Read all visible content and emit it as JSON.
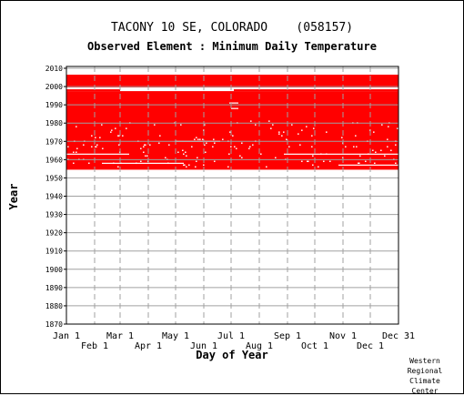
{
  "title": "TACONY 10 SE, COLORADO    (058157)",
  "subtitle": "Observed Element : Minimum Daily Temperature",
  "credit": [
    "Western",
    "Regional",
    "Climate",
    "Center"
  ],
  "colors": {
    "data": "#ff0000",
    "grid": "#a0a0a0",
    "axis": "#000000"
  },
  "chart_data": {
    "type": "scatter",
    "title": "TACONY 10 SE, COLORADO    (058157)",
    "subtitle": "Observed Element : Minimum Daily Temperature",
    "xlabel": "Day of Year",
    "ylabel": "Year",
    "xlim": [
      1,
      366
    ],
    "ylim": [
      1870,
      2011
    ],
    "x_ticks_top": [
      {
        "day": 1,
        "label": "Jan 1"
      },
      {
        "day": 60,
        "label": "Mar 1"
      },
      {
        "day": 121,
        "label": "May 1"
      },
      {
        "day": 182,
        "label": "Jul 1"
      },
      {
        "day": 244,
        "label": "Sep 1"
      },
      {
        "day": 305,
        "label": "Nov 1"
      },
      {
        "day": 366,
        "label": "Dec 31"
      }
    ],
    "x_ticks_bottom": [
      {
        "day": 32,
        "label": "Feb 1"
      },
      {
        "day": 91,
        "label": "Apr 1"
      },
      {
        "day": 152,
        "label": "Jun 1"
      },
      {
        "day": 213,
        "label": "Aug 1"
      },
      {
        "day": 274,
        "label": "Oct 1"
      },
      {
        "day": 335,
        "label": "Dec 1"
      }
    ],
    "y_ticks": [
      1870,
      1880,
      1890,
      1900,
      1910,
      1920,
      1930,
      1940,
      1950,
      1960,
      1970,
      1980,
      1990,
      2000,
      2010
    ],
    "grid": true,
    "series": [
      {
        "values": [
          {
            "start_year": 1955,
            "end_year": 1997,
            "start_day": 1,
            "end_day": 366,
            "coverage": "dense"
          },
          {
            "start_year": 2000,
            "end_year": 2006,
            "start_day": 1,
            "end_day": 366,
            "coverage": "dense"
          },
          {
            "start_year": 1998,
            "end_year": 1998,
            "start_day": 1,
            "end_day": 60,
            "coverage": "dense"
          },
          {
            "start_year": 1998,
            "end_year": 1998,
            "start_day": 185,
            "end_day": 366,
            "coverage": "dense"
          }
        ]
      }
    ]
  }
}
